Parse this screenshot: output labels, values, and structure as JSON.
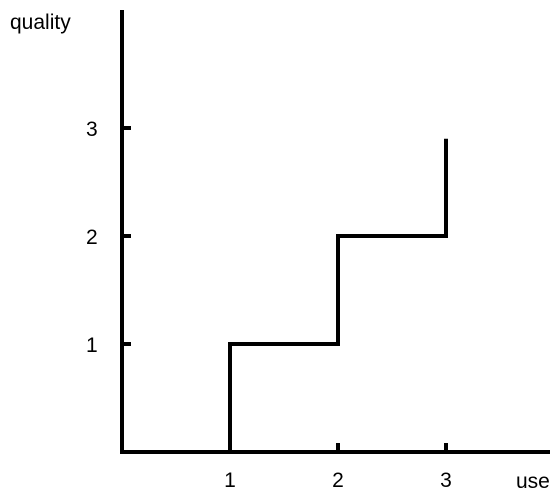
{
  "chart_data": {
    "type": "line",
    "step": true,
    "title": "",
    "xlabel": "use",
    "ylabel": "quality",
    "xlim": [
      0,
      3.9
    ],
    "ylim": [
      0,
      3.9
    ],
    "xticks": [
      1,
      2,
      3
    ],
    "yticks": [
      1,
      2,
      3
    ],
    "xtick_labels": [
      "1",
      "2",
      "3"
    ],
    "ytick_labels": [
      "1",
      "2",
      "3"
    ],
    "grid": false,
    "series": [
      {
        "points": [
          [
            0,
            0
          ],
          [
            1,
            0
          ],
          [
            1,
            1
          ],
          [
            2,
            1
          ],
          [
            2,
            2
          ],
          [
            3,
            2
          ],
          [
            3,
            2.9
          ]
        ]
      }
    ],
    "colors": {
      "line": "#000000",
      "axis": "#000000"
    }
  }
}
